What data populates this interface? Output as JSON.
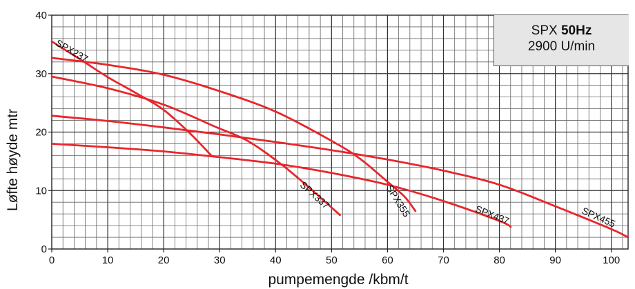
{
  "chart_data": {
    "type": "line",
    "xlabel": "pumpemengde /kbm/t",
    "ylabel": "Løfte høyde mtr",
    "xlim": [
      0,
      103
    ],
    "ylim": [
      0,
      40
    ],
    "x_ticks": [
      "0",
      "10",
      "20",
      "30",
      "40",
      "50",
      "60",
      "70",
      "80",
      "90",
      "100"
    ],
    "y_ticks": [
      "0",
      "10",
      "20",
      "30",
      "40"
    ],
    "grid": true,
    "info_box": {
      "prefix": "SPX ",
      "freq": "50Hz",
      "speed": "2900 U/min"
    },
    "line_color": "#e8262b",
    "series": [
      {
        "name": "SPX237",
        "x": [
          0,
          5,
          10,
          15,
          20,
          25,
          28.5
        ],
        "y": [
          35.5,
          32.5,
          29.4,
          26.7,
          23.8,
          19.5,
          16.0
        ]
      },
      {
        "name": "SPX337",
        "x": [
          0,
          10,
          20,
          29,
          35,
          41,
          46,
          51.5
        ],
        "y": [
          29.5,
          27.5,
          24.7,
          21.0,
          18.5,
          14.5,
          10.5,
          5.8
        ]
      },
      {
        "name": "SPX355",
        "x": [
          0,
          10,
          20,
          30,
          40,
          50,
          55,
          60,
          63,
          65
        ],
        "y": [
          32.7,
          31.5,
          29.8,
          27.0,
          23.5,
          18.5,
          15.5,
          11.5,
          9.0,
          6.5
        ]
      },
      {
        "name": "SPX437",
        "x": [
          0,
          10,
          20,
          30,
          40,
          50,
          60,
          70,
          80,
          82
        ],
        "y": [
          18.0,
          17.4,
          16.7,
          15.7,
          14.6,
          13.0,
          11.0,
          8.2,
          4.8,
          3.8
        ]
      },
      {
        "name": "SPX455",
        "x": [
          0,
          10,
          20,
          30,
          40,
          50,
          60,
          70,
          80,
          90,
          100,
          103
        ],
        "y": [
          22.8,
          21.9,
          20.8,
          19.6,
          18.3,
          16.9,
          15.3,
          13.4,
          11.0,
          7.3,
          3.4,
          2.0
        ]
      }
    ],
    "curve_labels": [
      {
        "text": "SPX237",
        "x": 3.3,
        "y": 33.4,
        "angle": 30
      },
      {
        "text": "SPX337",
        "x": 46.6,
        "y": 8.8,
        "angle": 42
      },
      {
        "text": "SPX355",
        "x": 61.4,
        "y": 7.9,
        "angle": 58
      },
      {
        "text": "SPX437",
        "x": 78.5,
        "y": 5.3,
        "angle": 22
      },
      {
        "text": "SPX455",
        "x": 97.5,
        "y": 4.9,
        "angle": 24
      }
    ]
  }
}
